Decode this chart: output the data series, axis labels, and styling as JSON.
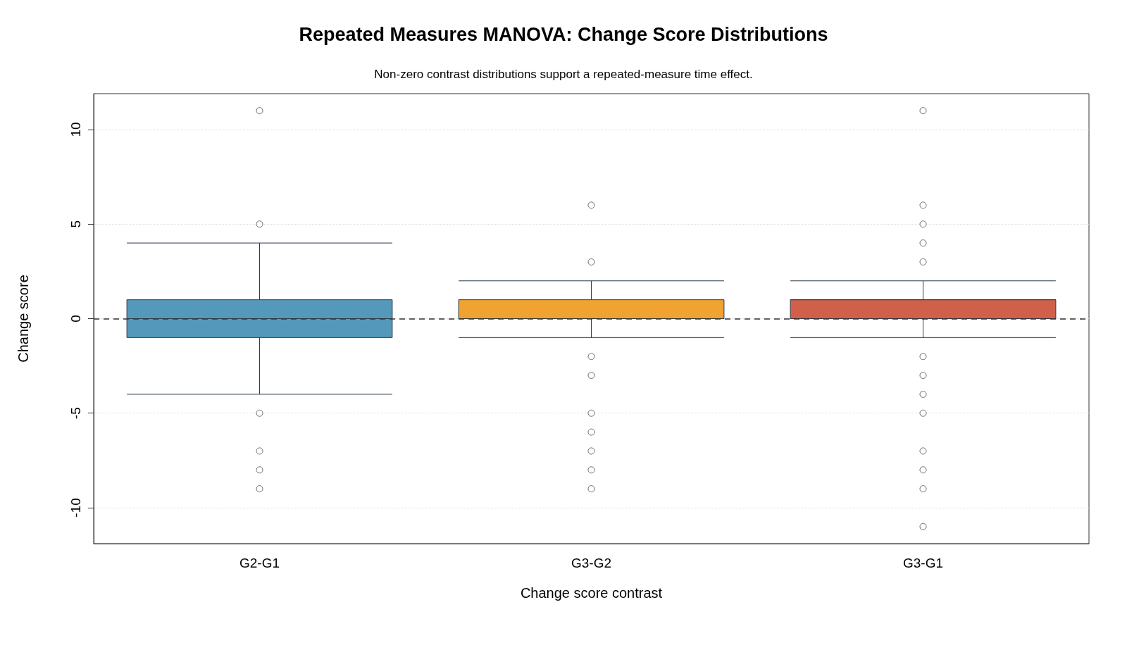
{
  "chart_data": {
    "type": "box",
    "title": "Repeated Measures MANOVA: Change Score Distributions",
    "subtitle": "Non-zero contrast distributions support a repeated-measure time effect.",
    "xlabel": "Change score contrast",
    "ylabel": "Change score",
    "categories": [
      "G2-G1",
      "G3-G2",
      "G3-G1"
    ],
    "colors": [
      "#5499bb",
      "#f0a330",
      "#d0604a"
    ],
    "boxes": [
      {
        "low": -4,
        "q1": -1,
        "median": 0,
        "q3": 1,
        "high": 4,
        "outliers": [
          11,
          5,
          -5,
          -7,
          -8,
          -9
        ]
      },
      {
        "low": -1,
        "q1": 0,
        "median": 0,
        "q3": 1,
        "high": 2,
        "outliers": [
          6,
          3,
          -2,
          -3,
          -5,
          -6,
          -7,
          -8,
          -9
        ]
      },
      {
        "low": -1,
        "q1": 0,
        "median": 1,
        "q3": 1,
        "high": 2,
        "outliers": [
          11,
          6,
          5,
          4,
          3,
          -2,
          -3,
          -4,
          -5,
          -7,
          -8,
          -9,
          -11
        ]
      }
    ],
    "ylim": [
      -11.9,
      11.9
    ],
    "yticks": [
      -10,
      -5,
      0,
      5,
      10
    ],
    "grid": "y",
    "ref_lines": [
      {
        "axis": "y",
        "value": 0,
        "label": null,
        "color": "#333333",
        "line_style": "dashed"
      }
    ]
  }
}
